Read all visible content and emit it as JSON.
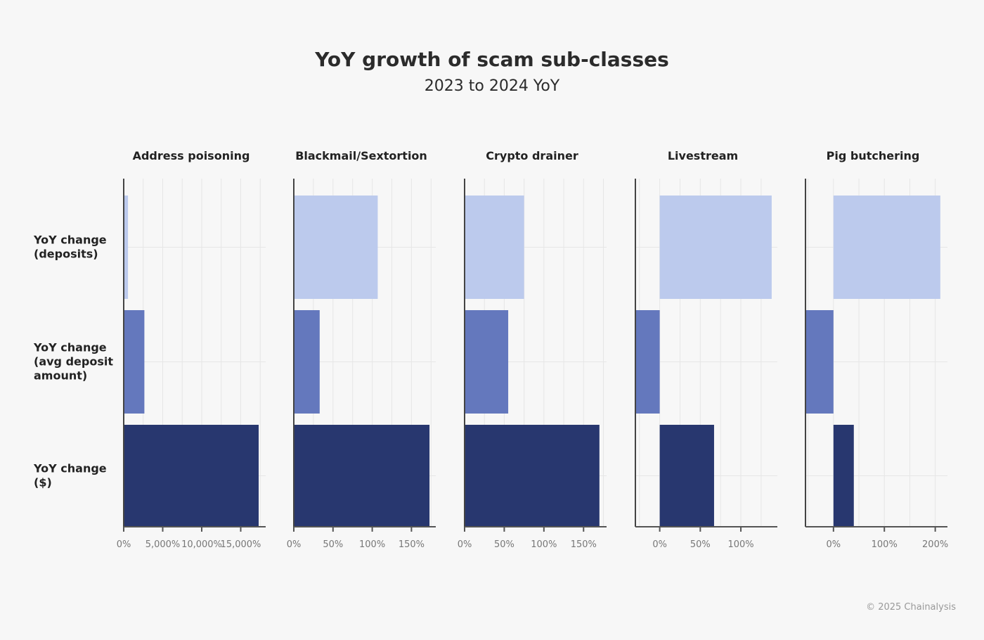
{
  "chart_data": {
    "type": "bar",
    "orientation": "horizontal",
    "title": "YoY growth of scam sub-classes",
    "subtitle": "2023 to 2024 YoY",
    "row_labels": [
      [
        "YoY change",
        "(deposits)"
      ],
      [
        "YoY change",
        "(avg deposit",
        "amount)"
      ],
      [
        "YoY change",
        "($)"
      ]
    ],
    "colors": [
      "#bccaed",
      "#6478bd",
      "#28376f"
    ],
    "grid": true,
    "unit": "%",
    "panels": [
      {
        "name": "Address poisoning",
        "xlim": [
          0,
          18200
        ],
        "ticks": [
          0,
          5000,
          10000,
          15000
        ],
        "tick_labels": [
          "0%",
          "5,000%",
          "10,000%",
          "15,000%"
        ],
        "values": [
          550,
          2650,
          17300
        ]
      },
      {
        "name": "Blackmail/Sextortion",
        "xlim": [
          0,
          181
        ],
        "ticks": [
          0,
          50,
          100,
          150
        ],
        "tick_labels": [
          "0%",
          "50%",
          "100%",
          "150%"
        ],
        "values": [
          107,
          33,
          173
        ]
      },
      {
        "name": "Crypto drainer",
        "xlim": [
          0,
          179
        ],
        "ticks": [
          0,
          50,
          100,
          150
        ],
        "tick_labels": [
          "0%",
          "50%",
          "100%",
          "150%"
        ],
        "values": [
          75,
          55,
          170
        ]
      },
      {
        "name": "Livestream",
        "xlim": [
          -30,
          145
        ],
        "ticks": [
          0,
          50,
          100
        ],
        "tick_labels": [
          "0%",
          "50%",
          "100%"
        ],
        "values": [
          138,
          -30,
          67
        ]
      },
      {
        "name": "Pig butchering",
        "xlim": [
          -55,
          224
        ],
        "ticks": [
          0,
          100,
          200
        ],
        "tick_labels": [
          "0%",
          "100%",
          "200%"
        ],
        "values": [
          210,
          -55,
          40
        ]
      }
    ]
  },
  "credit": "© 2025 Chainalysis"
}
